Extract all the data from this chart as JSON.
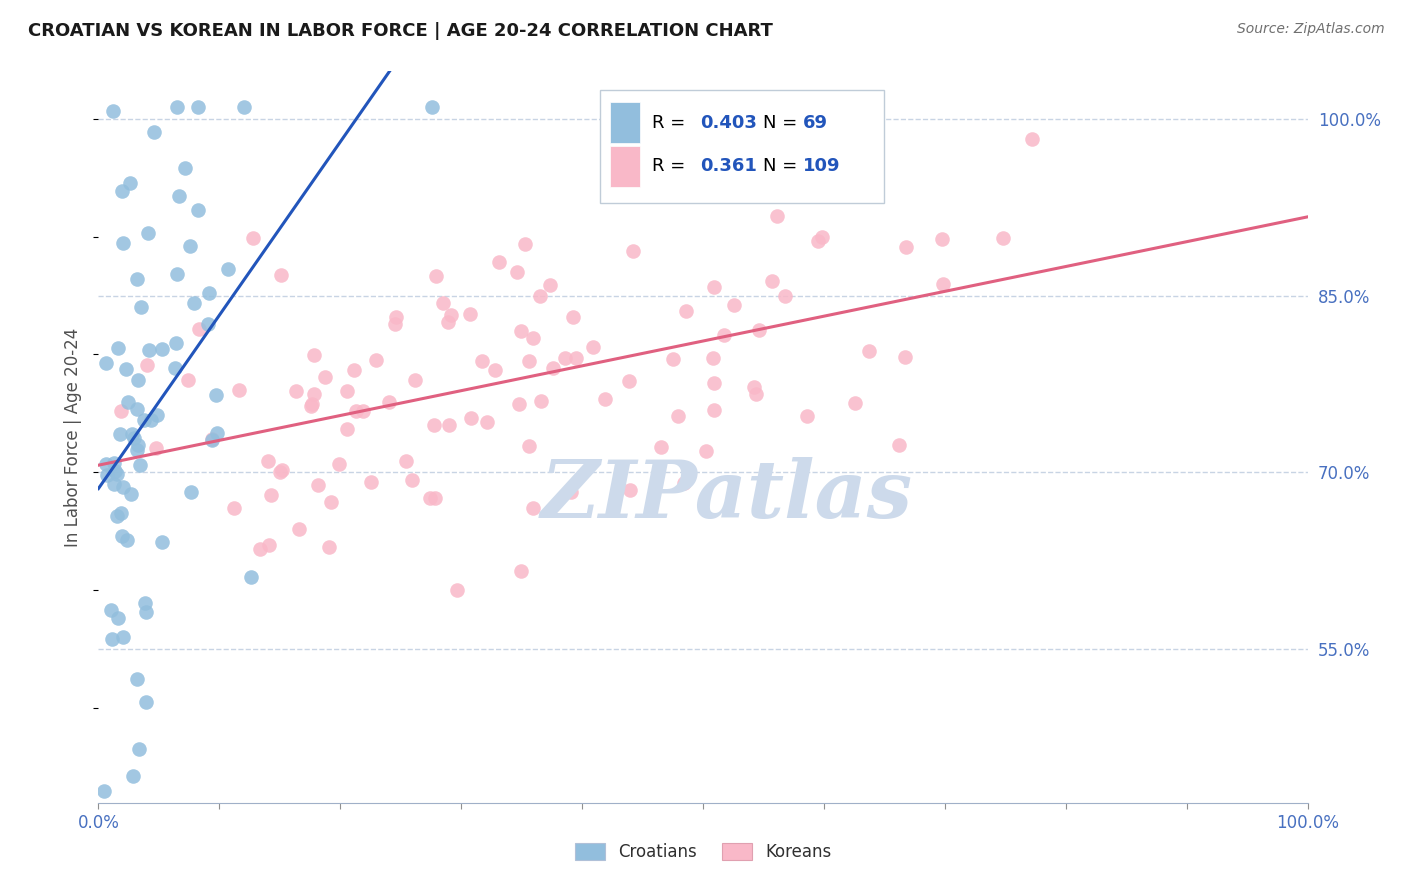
{
  "title": "CROATIAN VS KOREAN IN LABOR FORCE | AGE 20-24 CORRELATION CHART",
  "source": "Source: ZipAtlas.com",
  "ylabel": "In Labor Force | Age 20-24",
  "xlim": [
    0.0,
    1.0
  ],
  "ylim": [
    0.42,
    1.04
  ],
  "croatian_color": "#92bedd",
  "korean_color": "#f9b8c8",
  "croatian_line_color": "#2255bb",
  "korean_line_color": "#e06080",
  "legend_croatian_label": "Croatians",
  "legend_korean_label": "Koreans",
  "R_croatian": 0.403,
  "N_croatian": 69,
  "R_korean": 0.361,
  "N_korean": 109,
  "background_color": "#ffffff",
  "watermark_color": "#cddaeb",
  "grid_color": "#c8d4e4",
  "y_ticks_right": [
    1.0,
    0.85,
    0.7,
    0.55
  ],
  "y_tick_labels_right": [
    "100.0%",
    "85.0%",
    "70.0%",
    "55.0%"
  ],
  "x_ticks": [
    0.0,
    0.1,
    0.2,
    0.3,
    0.4,
    0.5,
    0.6,
    0.7,
    0.8,
    0.9,
    1.0
  ],
  "cr_seed": 42,
  "ko_seed": 99
}
